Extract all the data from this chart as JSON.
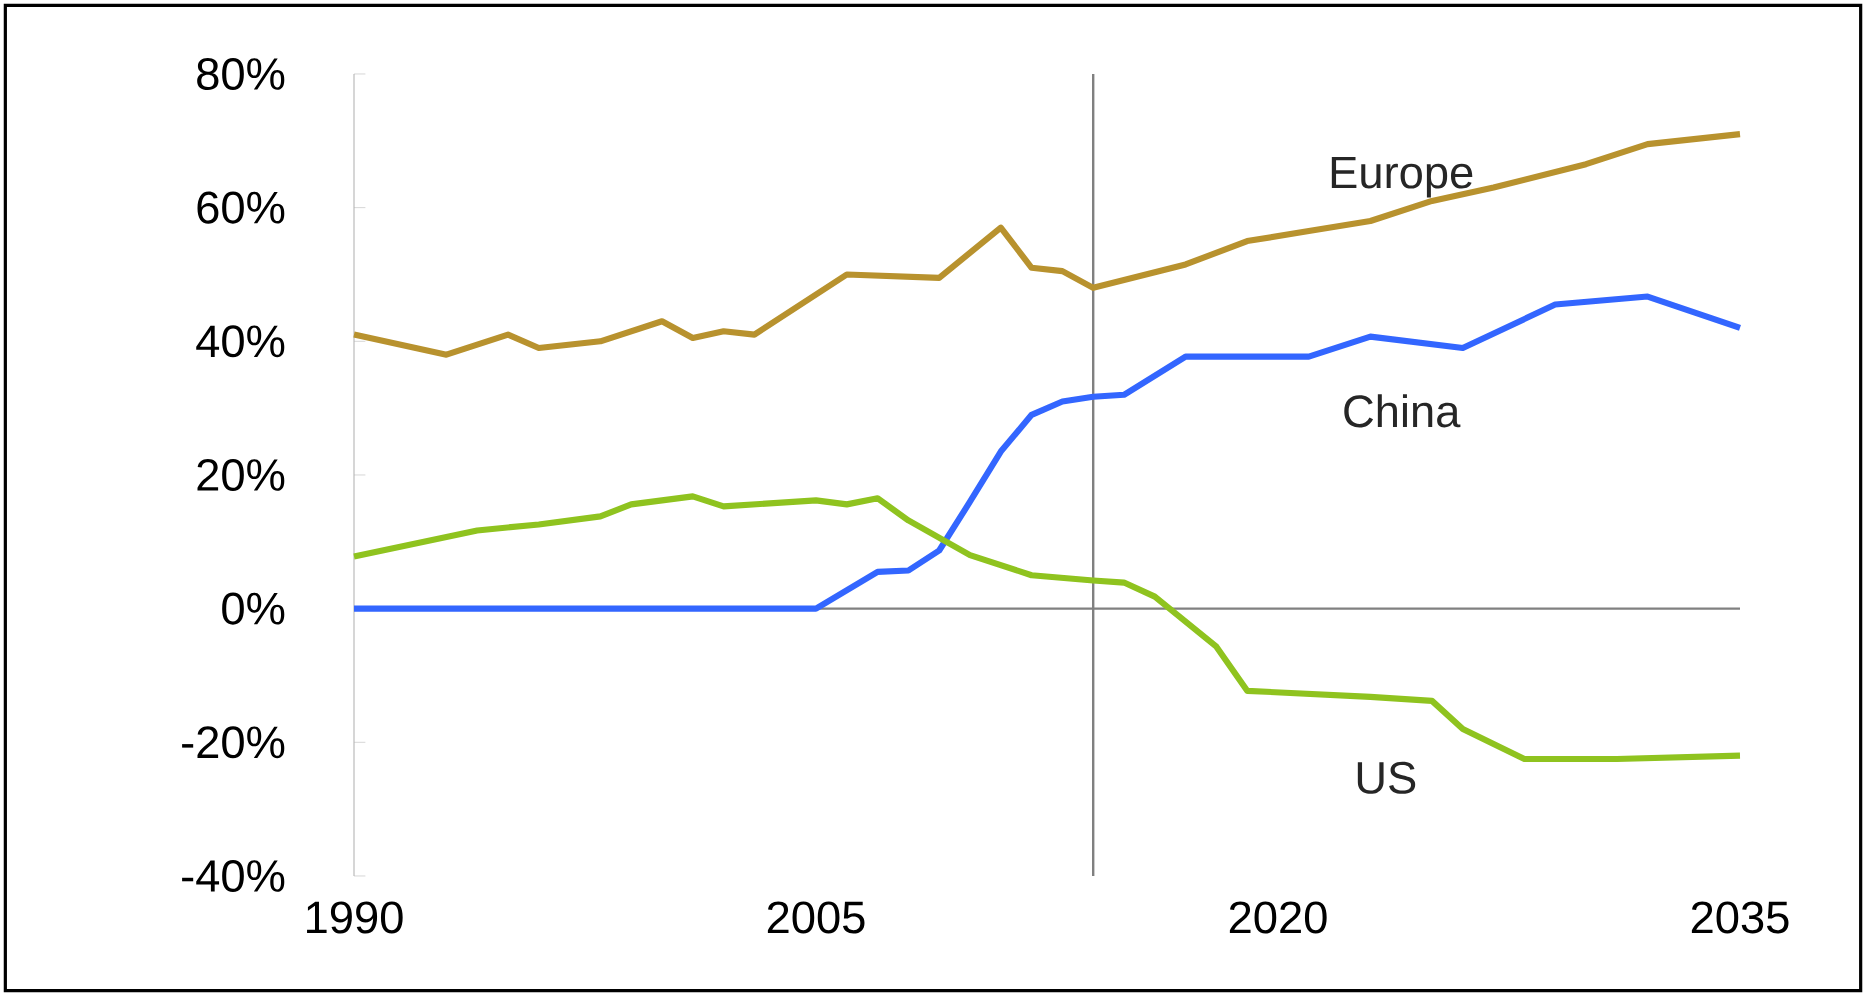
{
  "chart_data": {
    "type": "line",
    "xlim": [
      1990,
      2035
    ],
    "ylim": [
      -40,
      80
    ],
    "xticks": [
      1990,
      2005,
      2020,
      2035
    ],
    "yticks": [
      {
        "value": -40,
        "label": "-40%"
      },
      {
        "value": -20,
        "label": "-20%"
      },
      {
        "value": 0,
        "label": "0%"
      },
      {
        "value": 20,
        "label": "20%"
      },
      {
        "value": 40,
        "label": "40%"
      },
      {
        "value": 60,
        "label": "60%"
      },
      {
        "value": 80,
        "label": "80%"
      }
    ],
    "series": [
      {
        "name": "Europe",
        "color": "#b8922e",
        "x": [
          1990,
          1993,
          1995,
          1996,
          1998,
          2000,
          2001,
          2002,
          2003,
          2006,
          2009,
          2011,
          2012,
          2013,
          2014,
          2017,
          2019,
          2021,
          2023,
          2025,
          2027,
          2030,
          2032,
          2035
        ],
        "values": [
          41,
          38,
          41,
          39,
          40,
          43,
          40.5,
          41.5,
          41,
          50,
          49.5,
          57,
          51,
          50.5,
          48,
          51.5,
          55,
          56.5,
          58,
          61,
          63,
          66.5,
          69.5,
          71
        ]
      },
      {
        "name": "China",
        "color": "#3366ff",
        "x": [
          1990,
          2005,
          2007,
          2008,
          2009,
          2010,
          2011,
          2012,
          2013,
          2014,
          2015,
          2017,
          2021,
          2023,
          2026,
          2029,
          2032,
          2035
        ],
        "values": [
          0,
          0,
          5.5,
          5.7,
          8.7,
          16,
          23.5,
          29,
          31,
          31.7,
          32,
          37.7,
          37.7,
          40.7,
          39,
          45.5,
          46.7,
          42
        ]
      },
      {
        "name": "US",
        "color": "#8fc31f",
        "x": [
          1990,
          1994,
          1996,
          1998,
          1999,
          2001,
          2002,
          2005,
          2006,
          2007,
          2008,
          2010,
          2012,
          2014,
          2015,
          2016,
          2018,
          2019,
          2023,
          2025,
          2026,
          2028,
          2031,
          2035
        ],
        "values": [
          7.8,
          11.7,
          12.6,
          13.8,
          15.6,
          16.8,
          15.3,
          16.2,
          15.6,
          16.5,
          13.2,
          8,
          5,
          4.2,
          3.9,
          1.8,
          -5.7,
          -12.3,
          -13.2,
          -13.8,
          -18,
          -22.5,
          -22.5,
          -22
        ]
      }
    ],
    "ref_lines": [
      {
        "axis": "x",
        "value": 2014,
        "color": "#808080"
      },
      {
        "axis": "y",
        "value": 0,
        "color": "#808080"
      }
    ]
  }
}
